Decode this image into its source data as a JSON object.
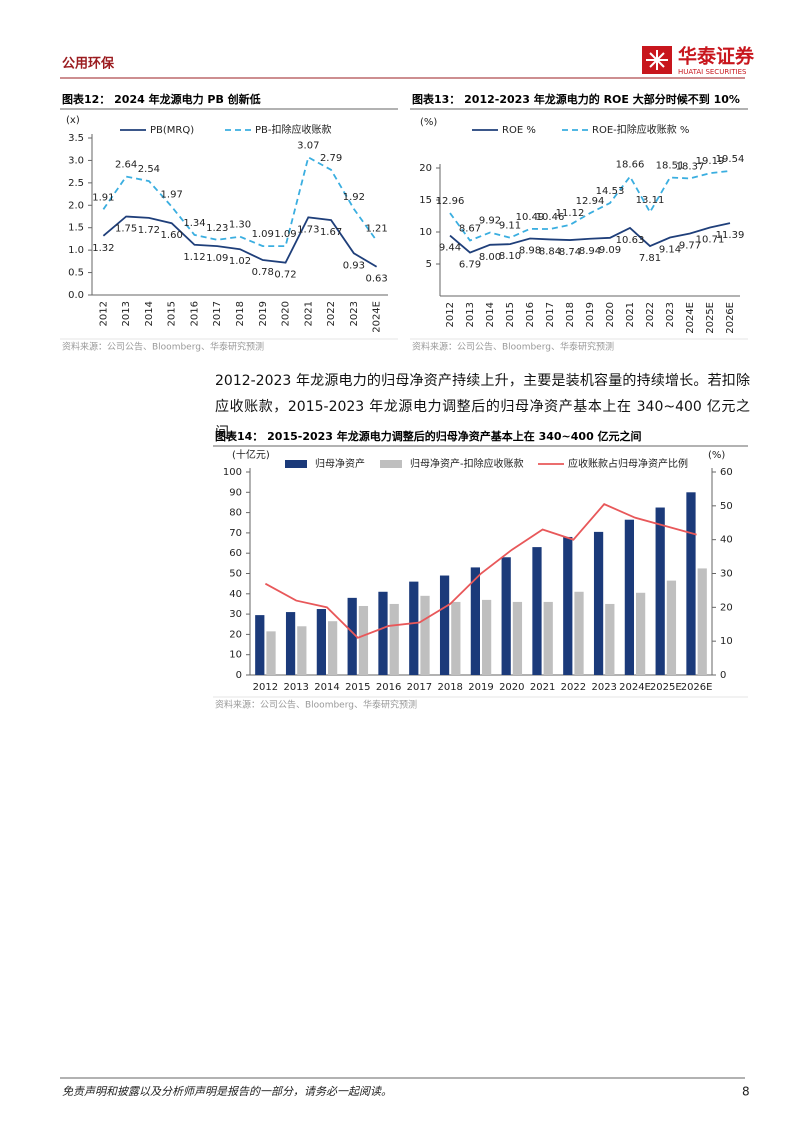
{
  "header": {
    "section": "公用环保",
    "brand": "华泰证券",
    "brand_en": "HUATAI SECURITIES"
  },
  "chart_data": [
    {
      "type": "line",
      "title": "图表12： 2024 年龙源电力 PB 创新低",
      "source": "资料来源：公司公告、Bloomberg、华泰研究预测",
      "y_label": "(x)",
      "categories": [
        "2012",
        "2013",
        "2014",
        "2015",
        "2016",
        "2017",
        "2018",
        "2019",
        "2020",
        "2021",
        "2022",
        "2023",
        "2024E"
      ],
      "series": [
        {
          "name": "PB(MRQ)",
          "color": "#1f3f7a",
          "dashed": false,
          "label_side": "below",
          "values": [
            1.32,
            1.75,
            1.72,
            1.6,
            1.12,
            1.09,
            1.02,
            0.78,
            0.72,
            1.73,
            1.67,
            0.93,
            0.63
          ],
          "value_labels": [
            "1.32",
            "1.75",
            "1.72",
            "1.60",
            "1.12",
            "1.09",
            "1.02",
            "0.78",
            "0.72",
            "1.73",
            "1.67",
            "0.93",
            "0.63"
          ]
        },
        {
          "name": "PB-扣除应收账款",
          "color": "#3aaee0",
          "dashed": true,
          "label_side": "above",
          "values": [
            1.91,
            2.64,
            2.54,
            1.97,
            1.34,
            1.23,
            1.3,
            1.09,
            1.09,
            3.07,
            2.79,
            1.92,
            1.21
          ],
          "value_labels": [
            "1.91",
            "2.64",
            "2.54",
            "1.97",
            "1.34",
            "1.23",
            "1.30",
            "1.09",
            "1.09",
            "3.07",
            "2.79",
            "1.92",
            "1.21"
          ]
        }
      ],
      "ylim": [
        0,
        3.5
      ],
      "yticks": [
        {
          "value": 0,
          "label": "0.0"
        },
        0.5,
        {
          "value": 1,
          "label": "1.0"
        },
        1.5,
        {
          "value": 2,
          "label": "2.0"
        },
        2.5,
        {
          "value": 3,
          "label": "3.0"
        },
        3.5
      ],
      "x_labels_rotated": true
    },
    {
      "type": "line",
      "title": "图表13： 2012-2023 年龙源电力的 ROE 大部分时候不到 10%",
      "source": "资料来源：公司公告、Bloomberg、华泰研究预测",
      "y_label": "(%)",
      "categories": [
        "2012",
        "2013",
        "2014",
        "2015",
        "2016",
        "2017",
        "2018",
        "2019",
        "2020",
        "2021",
        "2022",
        "2023",
        "2024E",
        "2025E",
        "2026E"
      ],
      "series": [
        {
          "name": "ROE %",
          "color": "#1f3f7a",
          "dashed": false,
          "label_side": "below",
          "values": [
            9.44,
            6.79,
            8.0,
            8.1,
            8.98,
            8.84,
            8.74,
            8.94,
            9.09,
            10.63,
            7.81,
            9.14,
            9.77,
            10.71,
            11.39
          ],
          "value_labels": [
            "9.44",
            "6.79",
            "8.00",
            "8.10",
            "8.98",
            "8.84",
            "8.74",
            "8.94",
            "9.09",
            "10.63",
            "7.81",
            "9.14",
            "9.77",
            "10.71",
            "11.39"
          ]
        },
        {
          "name": "ROE-扣除应收账款 %",
          "color": "#3aaee0",
          "dashed": true,
          "label_side": "above",
          "values": [
            12.96,
            8.67,
            9.92,
            9.11,
            10.49,
            10.46,
            11.12,
            12.94,
            14.53,
            18.66,
            13.11,
            18.51,
            18.37,
            19.19,
            19.54
          ],
          "value_labels": [
            "12.96",
            "8.67",
            "9.92",
            "9.11",
            "10.49",
            "10.46",
            "11.12",
            "12.94",
            "14.53",
            "18.66",
            "13.11",
            "18.51",
            "18.37",
            "19.19",
            "19.54"
          ]
        }
      ],
      "ylim": [
        0,
        20
      ],
      "yticks": [
        5,
        10,
        15,
        20
      ],
      "x_labels_rotated": true
    },
    {
      "type": "bar",
      "title": "图表14： 2015-2023 年龙源电力调整后的归母净资产基本上在 340~400 亿元之间",
      "source": "资料来源：公司公告、Bloomberg、华泰研究预测",
      "y_label": "(十亿元)",
      "y2_label": "(%)",
      "categories": [
        "2012",
        "2013",
        "2014",
        "2015",
        "2016",
        "2017",
        "2018",
        "2019",
        "2020",
        "2021",
        "2022",
        "2023",
        "2024E",
        "2025E",
        "2026E"
      ],
      "series": [
        {
          "name": "归母净资产",
          "color": "#1b3a7a",
          "values": [
            29.5,
            31,
            32.5,
            38,
            41,
            46,
            49,
            53,
            58,
            63,
            68,
            70.5,
            76.5,
            82.5,
            90
          ]
        },
        {
          "name": "归母净资产-扣除应收账款",
          "color": "#bfbfbf",
          "values": [
            21.5,
            24,
            26.5,
            34,
            35,
            39,
            36,
            37,
            36,
            36,
            41,
            35,
            40.5,
            46.5,
            52.5
          ]
        },
        {
          "name": "应收账款占归母净资产比例",
          "color": "#e8585a",
          "type": "line",
          "axis": "y2",
          "values": [
            27,
            22,
            20,
            11,
            14.5,
            15.5,
            21,
            30,
            37,
            43,
            40,
            50.5,
            46.5,
            44,
            41.5
          ]
        }
      ],
      "ylim": [
        0,
        100
      ],
      "yticks": [
        0,
        10,
        20,
        30,
        40,
        50,
        60,
        70,
        80,
        90,
        100
      ],
      "y2lim": [
        0,
        60
      ],
      "y2ticks": [
        0,
        10,
        20,
        30,
        40,
        50,
        60
      ],
      "x_labels_rotated": false
    }
  ],
  "body": {
    "paragraph": "2012-2023 年龙源电力的归母净资产持续上升，主要是装机容量的持续增长。若扣除应收账款，2015-2023 年龙源电力调整后的归母净资产基本上在 340~400 亿元之间。"
  },
  "footer": {
    "disclaimer": "免责声明和披露以及分析师声明是报告的一部分，请务必一起阅读。",
    "page": "8"
  }
}
